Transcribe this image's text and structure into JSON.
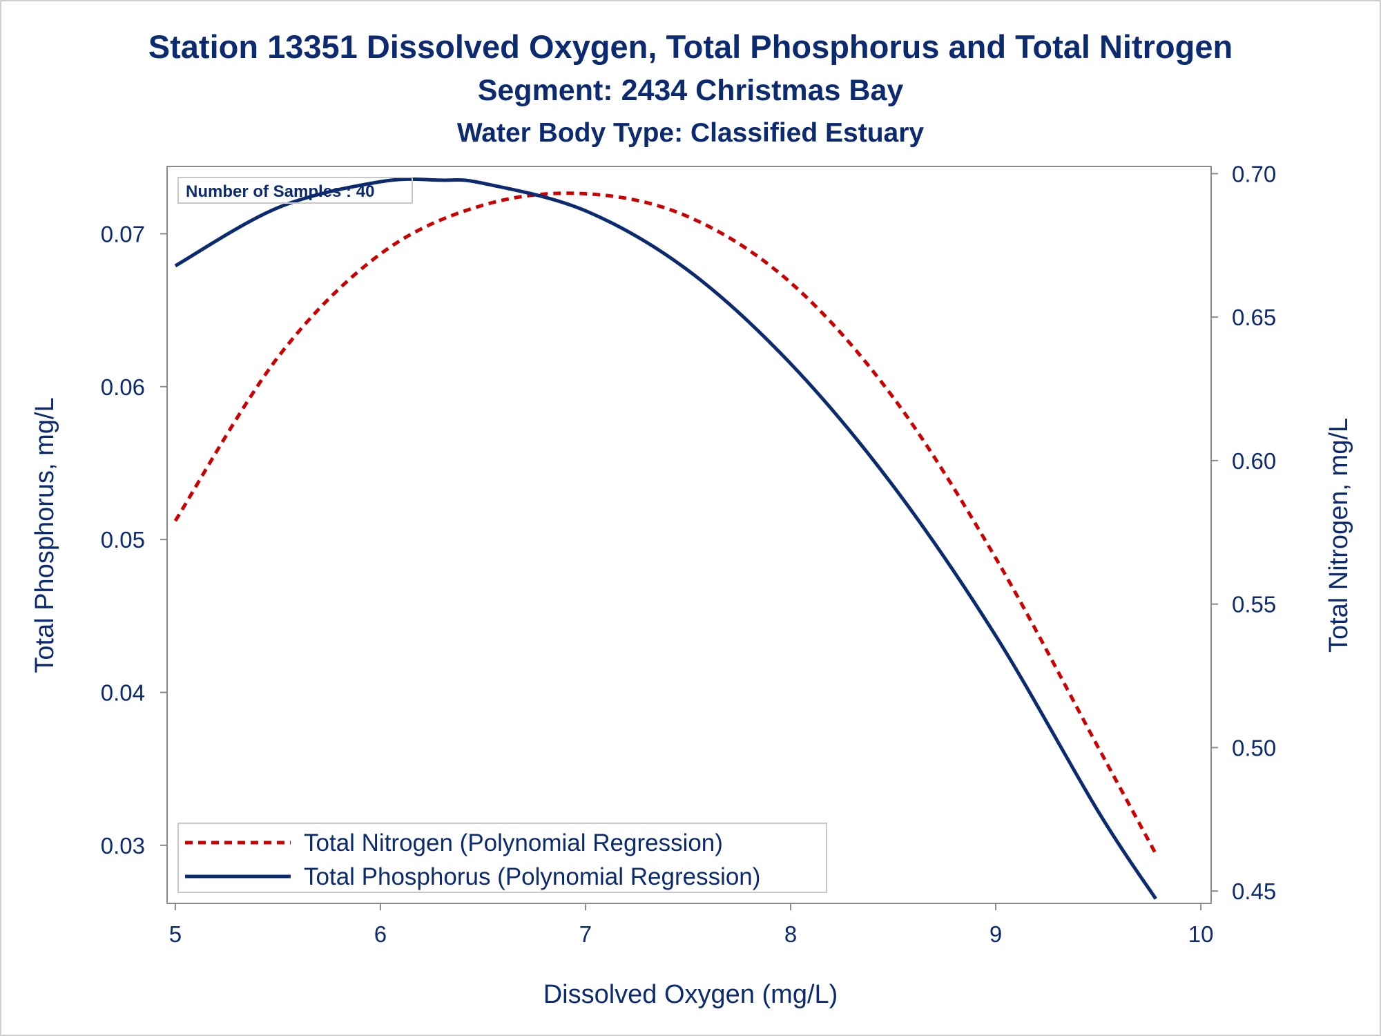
{
  "chart_data": {
    "type": "line",
    "title": "Station 13351  Dissolved Oxygen, Total Phosphorus and Total Nitrogen",
    "subtitle": "Segment: 2434  Christmas Bay",
    "subtitle2": "Water Body Type: Classified Estuary",
    "xlabel": "Dissolved Oxygen (mg/L)",
    "ylabel_left": "Total Phosphorus, mg/L",
    "ylabel_right": "Total Nitrogen, mg/L",
    "xlim": [
      4.96,
      10.05
    ],
    "ylim_left": [
      0.0262,
      0.0744
    ],
    "ylim_right": [
      0.4457,
      0.7025
    ],
    "x_ticks": [
      "5",
      "6",
      "7",
      "8",
      "9",
      "10"
    ],
    "y_left_ticks": [
      "0.03",
      "0.04",
      "0.05",
      "0.06",
      "0.07"
    ],
    "y_right_ticks": [
      "0.45",
      "0.50",
      "0.55",
      "0.60",
      "0.65",
      "0.70"
    ],
    "inset_label": "Number of Samples : 40",
    "legend_position": "bottom-left",
    "grid": false,
    "series": [
      {
        "name": "Total Nitrogen (Polynomial Regression)",
        "axis": "right",
        "style": "dashed",
        "color": "#cc0000",
        "x": [
          5.0,
          5.5,
          6.0,
          6.5,
          7.0,
          7.5,
          8.0,
          8.5,
          9.0,
          9.5,
          9.78
        ],
        "y": [
          0.579,
          0.636,
          0.672,
          0.689,
          0.693,
          0.685,
          0.662,
          0.622,
          0.566,
          0.5,
          0.463
        ]
      },
      {
        "name": "Total Phosphorus (Polynomial Regression)",
        "axis": "left",
        "style": "solid",
        "color": "#0b2a6f",
        "x": [
          5.0,
          5.5,
          6.0,
          6.3,
          6.5,
          7.0,
          7.5,
          8.0,
          8.5,
          9.0,
          9.5,
          9.78
        ],
        "y": [
          0.0679,
          0.0717,
          0.0734,
          0.0735,
          0.0733,
          0.0715,
          0.0676,
          0.0615,
          0.0535,
          0.0437,
          0.0322,
          0.0265
        ]
      }
    ]
  },
  "colors": {
    "text": "#0b2a6f",
    "nitrogen": "#cc0000",
    "phosphorus": "#0b2a6f",
    "axis": "#8a8a8a",
    "legend_border": "#c8c8c8"
  }
}
